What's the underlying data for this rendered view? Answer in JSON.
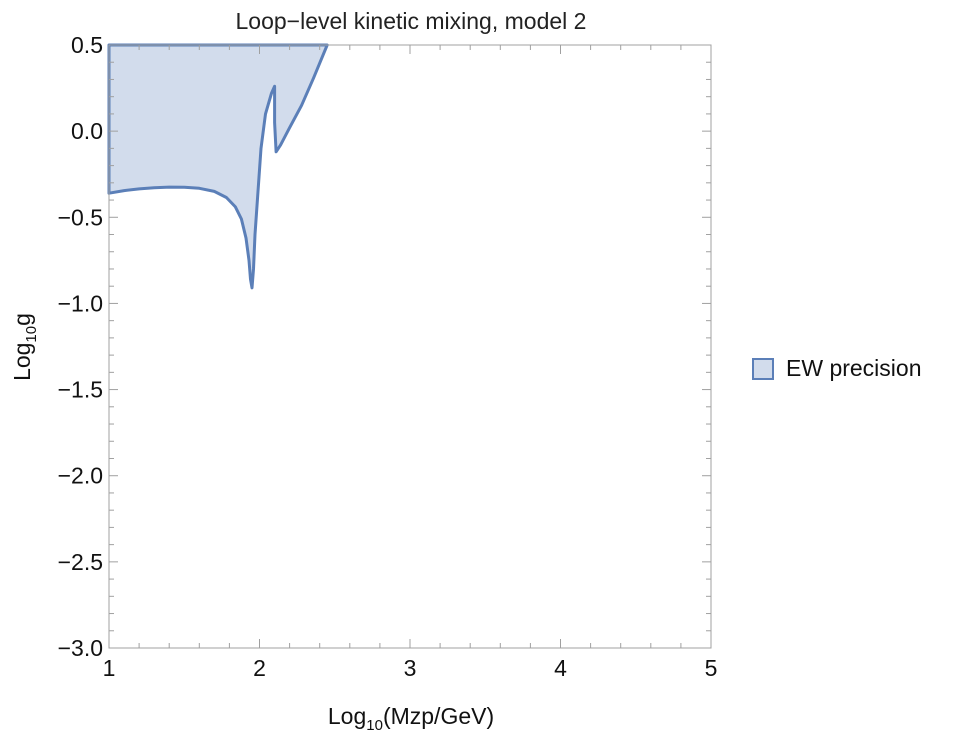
{
  "chart_data": {
    "type": "area",
    "title": "Loop−level kinetic mixing, model 2",
    "xlabel": {
      "prefix": "Log",
      "sub": "10",
      "suffix": "(Mzp/GeV)"
    },
    "ylabel": {
      "prefix": "Log",
      "sub": "10",
      "suffix": "g"
    },
    "xlim": [
      1,
      5
    ],
    "ylim": [
      -3,
      0.5
    ],
    "xticks": [
      1,
      2,
      3,
      4,
      5
    ],
    "xtick_labels": [
      "1",
      "2",
      "3",
      "4",
      "5"
    ],
    "yticks": [
      0.5,
      0.0,
      -0.5,
      -1.0,
      -1.5,
      -2.0,
      -2.5,
      -3.0
    ],
    "ytick_labels": [
      "0.5",
      "0.0",
      "−0.5",
      "−1.0",
      "−1.5",
      "−2.0",
      "−2.5",
      "−3.0"
    ],
    "grid": false,
    "legend": {
      "position": "right",
      "entries": [
        "EW precision"
      ]
    },
    "series": [
      {
        "name": "EW precision",
        "color": "#5b7fb8",
        "fill": "#d2dcec",
        "boundary": [
          [
            1.0,
            -0.36
          ],
          [
            1.1,
            -0.345
          ],
          [
            1.2,
            -0.335
          ],
          [
            1.3,
            -0.328
          ],
          [
            1.4,
            -0.325
          ],
          [
            1.5,
            -0.326
          ],
          [
            1.6,
            -0.332
          ],
          [
            1.7,
            -0.35
          ],
          [
            1.78,
            -0.385
          ],
          [
            1.84,
            -0.44
          ],
          [
            1.88,
            -0.51
          ],
          [
            1.91,
            -0.62
          ],
          [
            1.93,
            -0.75
          ],
          [
            1.94,
            -0.86
          ],
          [
            1.95,
            -0.91
          ],
          [
            1.96,
            -0.8
          ],
          [
            1.97,
            -0.6
          ],
          [
            1.99,
            -0.35
          ],
          [
            2.01,
            -0.1
          ],
          [
            2.04,
            0.1
          ],
          [
            2.08,
            0.22
          ],
          [
            2.1,
            0.26
          ],
          [
            2.1,
            0.05
          ],
          [
            2.11,
            -0.12
          ],
          [
            2.14,
            -0.08
          ],
          [
            2.2,
            0.02
          ],
          [
            2.28,
            0.15
          ],
          [
            2.36,
            0.31
          ],
          [
            2.45,
            0.5
          ],
          [
            1.0,
            0.5
          ]
        ]
      }
    ]
  }
}
